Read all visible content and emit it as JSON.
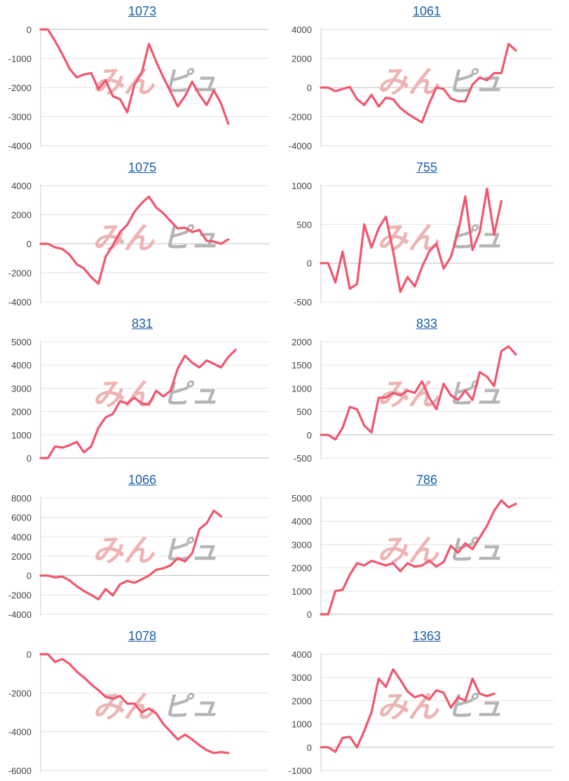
{
  "colors": {
    "line": "#f0566e",
    "grid": "#e3e3e3",
    "axis": "#cccccc",
    "title": "#1a5ea8",
    "watermark_left": "#eeb3b3",
    "watermark_right": "#b5b5b5"
  },
  "watermark": {
    "text_left": "みん",
    "text_right": "ピュ"
  },
  "chart_data": [
    {
      "type": "line",
      "title": "1073",
      "ylim": [
        -4000,
        0
      ],
      "yticks": [
        0,
        -1000,
        -2000,
        -3000,
        -4000
      ],
      "values": [
        0,
        0,
        -400,
        -850,
        -1350,
        -1650,
        -1550,
        -1500,
        -2050,
        -1750,
        -2300,
        -2400,
        -2850,
        -1900,
        -1500,
        -500,
        -1100,
        -1650,
        -2150,
        -2650,
        -2300,
        -1800,
        -2250,
        -2600,
        -2100,
        -2550,
        -3250
      ]
    },
    {
      "type": "line",
      "title": "1061",
      "ylim": [
        -4000,
        4000
      ],
      "yticks": [
        4000,
        2000,
        0,
        -2000,
        -4000
      ],
      "values": [
        0,
        0,
        -250,
        -100,
        50,
        -800,
        -1200,
        -500,
        -1300,
        -700,
        -800,
        -1400,
        -1800,
        -2100,
        -2400,
        -1100,
        0,
        -100,
        -750,
        -950,
        -950,
        200,
        700,
        500,
        1000,
        1000,
        3000,
        2550
      ]
    },
    {
      "type": "line",
      "title": "1075",
      "ylim": [
        -4000,
        4000
      ],
      "yticks": [
        4000,
        2000,
        0,
        -2000,
        -4000
      ],
      "values": [
        0,
        0,
        -250,
        -350,
        -750,
        -1400,
        -1700,
        -2300,
        -2750,
        -900,
        -100,
        800,
        1300,
        2200,
        2800,
        3250,
        2500,
        2100,
        1550,
        1050,
        1100,
        800,
        950,
        200,
        150,
        0,
        300
      ]
    },
    {
      "type": "line",
      "title": "755",
      "ylim": [
        -500,
        1000
      ],
      "yticks": [
        1000,
        500,
        0,
        -500
      ],
      "values": [
        0,
        0,
        -250,
        150,
        -330,
        -270,
        500,
        200,
        450,
        600,
        150,
        -370,
        -180,
        -300,
        -50,
        150,
        250,
        -70,
        80,
        400,
        860,
        170,
        400,
        960,
        370,
        800
      ]
    },
    {
      "type": "line",
      "title": "831",
      "ylim": [
        0,
        5000
      ],
      "yticks": [
        5000,
        4000,
        3000,
        2000,
        1000,
        0
      ],
      "values": [
        0,
        0,
        500,
        450,
        550,
        700,
        250,
        500,
        1300,
        1750,
        1900,
        2450,
        2350,
        2600,
        2350,
        2300,
        2900,
        2650,
        2900,
        3850,
        4400,
        4100,
        3900,
        4200,
        4050,
        3900,
        4350,
        4650
      ]
    },
    {
      "type": "line",
      "title": "833",
      "ylim": [
        -500,
        2000
      ],
      "yticks": [
        2000,
        1500,
        1000,
        500,
        0,
        -500
      ],
      "values": [
        0,
        0,
        -100,
        150,
        600,
        550,
        200,
        50,
        800,
        800,
        900,
        850,
        950,
        900,
        1150,
        800,
        550,
        1100,
        850,
        750,
        950,
        750,
        1350,
        1250,
        1050,
        1800,
        1900,
        1730
      ]
    },
    {
      "type": "line",
      "title": "1066",
      "ylim": [
        -4000,
        8000
      ],
      "yticks": [
        8000,
        6000,
        4000,
        2000,
        0,
        -2000,
        -4000
      ],
      "values": [
        0,
        0,
        -200,
        -100,
        -500,
        -1100,
        -1600,
        -2000,
        -2450,
        -1400,
        -2050,
        -900,
        -550,
        -750,
        -400,
        0,
        600,
        750,
        1050,
        1800,
        1450,
        2300,
        4800,
        5400,
        6700,
        6100
      ]
    },
    {
      "type": "line",
      "title": "786",
      "ylim": [
        0,
        5000
      ],
      "yticks": [
        5000,
        4000,
        3000,
        2000,
        1000,
        0
      ],
      "values": [
        0,
        0,
        1000,
        1050,
        1700,
        2200,
        2100,
        2300,
        2200,
        2100,
        2200,
        1850,
        2200,
        2050,
        2100,
        2300,
        2050,
        2250,
        2950,
        2650,
        3050,
        2800,
        3300,
        3800,
        4450,
        4900,
        4600,
        4750
      ]
    },
    {
      "type": "line",
      "title": "1078",
      "ylim": [
        -6000,
        0
      ],
      "yticks": [
        0,
        -2000,
        -4000,
        -6000
      ],
      "values": [
        0,
        0,
        -400,
        -250,
        -500,
        -900,
        -1200,
        -1550,
        -1850,
        -2200,
        -2300,
        -2150,
        -2550,
        -2550,
        -3000,
        -2800,
        -3050,
        -3600,
        -4000,
        -4400,
        -4150,
        -4400,
        -4700,
        -4950,
        -5100,
        -5050,
        -5100
      ]
    },
    {
      "type": "line",
      "title": "1363",
      "ylim": [
        -1000,
        4000
      ],
      "yticks": [
        4000,
        3000,
        2000,
        1000,
        0,
        -1000
      ],
      "values": [
        0,
        0,
        -200,
        400,
        450,
        0,
        700,
        1500,
        2950,
        2600,
        3350,
        2900,
        2400,
        2150,
        2250,
        2050,
        2450,
        2350,
        1700,
        2150,
        2000,
        2950,
        2300,
        2200,
        2300
      ]
    }
  ]
}
